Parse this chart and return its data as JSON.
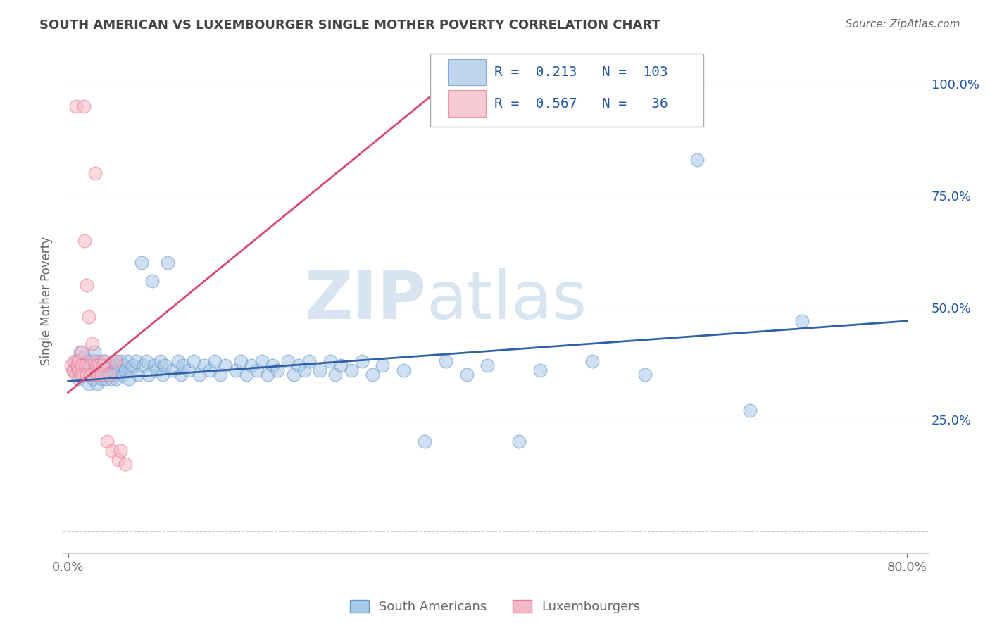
{
  "title": "SOUTH AMERICAN VS LUXEMBOURGER SINGLE MOTHER POVERTY CORRELATION CHART",
  "source": "Source: ZipAtlas.com",
  "ylabel": "Single Mother Poverty",
  "xlabel": "",
  "watermark_zip": "ZIP",
  "watermark_atlas": "atlas",
  "xlim": [
    -0.005,
    0.82
  ],
  "ylim": [
    -0.05,
    1.08
  ],
  "xtick_positions": [
    0.0,
    0.8
  ],
  "xticklabels": [
    "0.0%",
    "80.0%"
  ],
  "yticks_right": [
    0.0,
    0.25,
    0.5,
    0.75,
    1.0
  ],
  "yticklabels_right": [
    "",
    "25.0%",
    "50.0%",
    "75.0%",
    "100.0%"
  ],
  "blue_R": 0.213,
  "blue_N": 103,
  "pink_R": 0.567,
  "pink_N": 36,
  "blue_color": "#A8C8E8",
  "pink_color": "#F5B8C8",
  "blue_edge_color": "#6898C8",
  "pink_edge_color": "#E87898",
  "blue_line_color": "#3060A8",
  "pink_line_color": "#D84870",
  "legend_label_blue": "South Americans",
  "legend_label_pink": "Luxembourgers",
  "blue_scatter_x": [
    0.005,
    0.008,
    0.01,
    0.012,
    0.013,
    0.015,
    0.016,
    0.018,
    0.02,
    0.02,
    0.022,
    0.023,
    0.024,
    0.025,
    0.025,
    0.027,
    0.028,
    0.028,
    0.03,
    0.03,
    0.031,
    0.032,
    0.033,
    0.034,
    0.035,
    0.036,
    0.037,
    0.038,
    0.04,
    0.041,
    0.042,
    0.043,
    0.044,
    0.045,
    0.046,
    0.048,
    0.05,
    0.052,
    0.053,
    0.055,
    0.057,
    0.058,
    0.06,
    0.062,
    0.065,
    0.067,
    0.07,
    0.072,
    0.075,
    0.077,
    0.08,
    0.082,
    0.085,
    0.088,
    0.09,
    0.092,
    0.095,
    0.1,
    0.105,
    0.108,
    0.11,
    0.115,
    0.12,
    0.125,
    0.13,
    0.135,
    0.14,
    0.145,
    0.15,
    0.16,
    0.165,
    0.17,
    0.175,
    0.18,
    0.185,
    0.19,
    0.195,
    0.2,
    0.21,
    0.215,
    0.22,
    0.225,
    0.23,
    0.24,
    0.25,
    0.255,
    0.26,
    0.27,
    0.28,
    0.29,
    0.3,
    0.32,
    0.34,
    0.36,
    0.38,
    0.4,
    0.43,
    0.45,
    0.5,
    0.55,
    0.6,
    0.65,
    0.7
  ],
  "blue_scatter_y": [
    0.36,
    0.38,
    0.34,
    0.4,
    0.37,
    0.35,
    0.39,
    0.36,
    0.33,
    0.38,
    0.35,
    0.37,
    0.34,
    0.36,
    0.4,
    0.35,
    0.38,
    0.33,
    0.37,
    0.35,
    0.36,
    0.34,
    0.38,
    0.35,
    0.37,
    0.34,
    0.36,
    0.35,
    0.37,
    0.34,
    0.36,
    0.38,
    0.35,
    0.37,
    0.34,
    0.36,
    0.38,
    0.35,
    0.37,
    0.36,
    0.38,
    0.34,
    0.36,
    0.37,
    0.38,
    0.35,
    0.6,
    0.37,
    0.38,
    0.35,
    0.56,
    0.37,
    0.36,
    0.38,
    0.35,
    0.37,
    0.6,
    0.36,
    0.38,
    0.35,
    0.37,
    0.36,
    0.38,
    0.35,
    0.37,
    0.36,
    0.38,
    0.35,
    0.37,
    0.36,
    0.38,
    0.35,
    0.37,
    0.36,
    0.38,
    0.35,
    0.37,
    0.36,
    0.38,
    0.35,
    0.37,
    0.36,
    0.38,
    0.36,
    0.38,
    0.35,
    0.37,
    0.36,
    0.38,
    0.35,
    0.37,
    0.36,
    0.2,
    0.38,
    0.35,
    0.37,
    0.2,
    0.36,
    0.38,
    0.35,
    0.83,
    0.27,
    0.47
  ],
  "pink_scatter_x": [
    0.003,
    0.005,
    0.006,
    0.007,
    0.008,
    0.009,
    0.01,
    0.01,
    0.012,
    0.013,
    0.013,
    0.014,
    0.015,
    0.016,
    0.017,
    0.018,
    0.018,
    0.02,
    0.021,
    0.022,
    0.023,
    0.025,
    0.026,
    0.027,
    0.028,
    0.03,
    0.032,
    0.033,
    0.035,
    0.037,
    0.04,
    0.042,
    0.045,
    0.048,
    0.05,
    0.055
  ],
  "pink_scatter_y": [
    0.37,
    0.36,
    0.38,
    0.35,
    0.95,
    0.37,
    0.36,
    0.38,
    0.35,
    0.37,
    0.4,
    0.35,
    0.95,
    0.65,
    0.37,
    0.55,
    0.35,
    0.48,
    0.37,
    0.35,
    0.42,
    0.38,
    0.8,
    0.37,
    0.35,
    0.37,
    0.35,
    0.37,
    0.38,
    0.2,
    0.35,
    0.18,
    0.38,
    0.16,
    0.18,
    0.15
  ],
  "blue_trend_x": [
    0.0,
    0.8
  ],
  "blue_trend_y": [
    0.335,
    0.47
  ],
  "pink_trend_x": [
    0.0,
    0.36
  ],
  "pink_trend_y": [
    0.31,
    1.0
  ],
  "grid_color": "#CCCCCC",
  "background_color": "#FFFFFF",
  "title_color": "#444444",
  "axis_color": "#666666",
  "stat_label_color": "#2255AA",
  "watermark_color": "#D8E4F0",
  "stat_text_black": "#333333"
}
